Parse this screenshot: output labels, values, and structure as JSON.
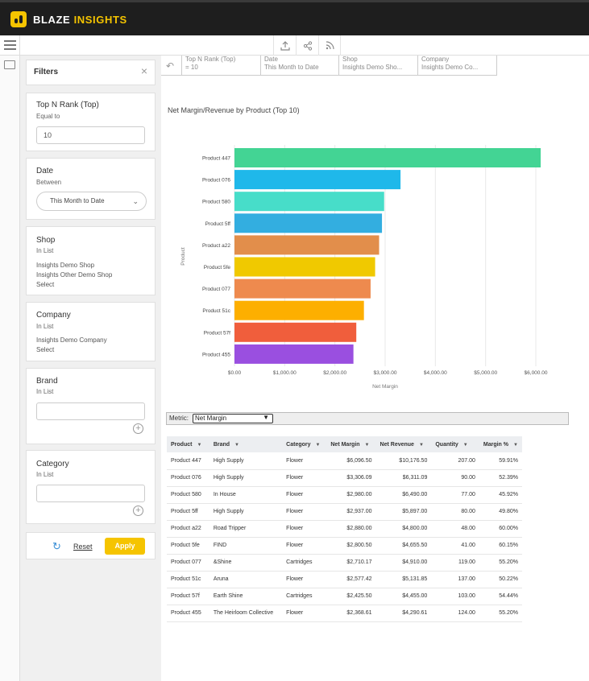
{
  "app": {
    "brand_part1": "BLAZE",
    "brand_part2": "INSIGHTS"
  },
  "toolbar": {
    "icons": [
      "export-icon",
      "share-icon",
      "rss-icon"
    ]
  },
  "filters": {
    "title": "Filters",
    "top_n": {
      "title": "Top N Rank (Top)",
      "operator": "Equal to",
      "value": "10"
    },
    "date": {
      "title": "Date",
      "operator": "Between",
      "selected": "This Month to Date"
    },
    "shop": {
      "title": "Shop",
      "operator": "In List",
      "items": [
        "Insights Demo Shop",
        "Insights Other Demo Shop"
      ],
      "select_label": "Select"
    },
    "company": {
      "title": "Company",
      "operator": "In List",
      "items": [
        "Insights Demo Company"
      ],
      "select_label": "Select"
    },
    "brand": {
      "title": "Brand",
      "operator": "In List",
      "search_value": ""
    },
    "category": {
      "title": "Category",
      "operator": "In List",
      "search_value": ""
    },
    "reset_label": "Reset",
    "apply_label": "Apply"
  },
  "chips": [
    {
      "label": "Top N Rank (Top)",
      "value": "= 10"
    },
    {
      "label": "Date",
      "value": "This Month to Date"
    },
    {
      "label": "Shop",
      "value": "Insights Demo Sho..."
    },
    {
      "label": "Company",
      "value": "Insights Demo Co..."
    }
  ],
  "chart_data": {
    "type": "bar",
    "orientation": "horizontal",
    "title": "Net Margin/Revenue by Product (Top 10)",
    "xlabel": "Net Margin",
    "ylabel": "Product",
    "categories": [
      "Product 447",
      "Product 076",
      "Product 580",
      "Product 5ff",
      "Product a22",
      "Product 5fe",
      "Product 077",
      "Product 51c",
      "Product 57f",
      "Product 455"
    ],
    "values": [
      6096.5,
      3306.09,
      2980.0,
      2937.0,
      2880.0,
      2800.5,
      2710.17,
      2577.42,
      2425.5,
      2368.61
    ],
    "colors": [
      "#43d494",
      "#1fb8ea",
      "#47ddc9",
      "#33aee0",
      "#e28e4b",
      "#f0c900",
      "#ee8a4e",
      "#fdaf00",
      "#f05e3c",
      "#9a4fe0"
    ],
    "xlim": [
      0,
      6000
    ],
    "xticks": [
      "$0.00",
      "$1,000.00",
      "$2,000.00",
      "$3,000.00",
      "$4,000.00",
      "$5,000.00",
      "$6,000.00"
    ],
    "grid": true
  },
  "metric": {
    "label": "Metric:",
    "selected": "Net Margin"
  },
  "table": {
    "columns": [
      "Product",
      "Brand",
      "Category",
      "Net Margin",
      "Net Revenue",
      "Quantity",
      "Margin %"
    ],
    "rows": [
      [
        "Product 447",
        "High Supply",
        "Flower",
        "$6,096.50",
        "$10,176.50",
        "207.00",
        "59.91%"
      ],
      [
        "Product 076",
        "High Supply",
        "Flower",
        "$3,306.09",
        "$6,311.09",
        "90.00",
        "52.39%"
      ],
      [
        "Product 580",
        "In House",
        "Flower",
        "$2,980.00",
        "$6,490.00",
        "77.00",
        "45.92%"
      ],
      [
        "Product 5ff",
        "High Supply",
        "Flower",
        "$2,937.00",
        "$5,897.00",
        "80.00",
        "49.80%"
      ],
      [
        "Product a22",
        "Road Tripper",
        "Flower",
        "$2,880.00",
        "$4,800.00",
        "48.00",
        "60.00%"
      ],
      [
        "Product 5fe",
        "FIND",
        "Flower",
        "$2,800.50",
        "$4,655.50",
        "41.00",
        "60.15%"
      ],
      [
        "Product 077",
        "&Shine",
        "Cartridges",
        "$2,710.17",
        "$4,910.00",
        "119.00",
        "55.20%"
      ],
      [
        "Product 51c",
        "Aruna",
        "Flower",
        "$2,577.42",
        "$5,131.85",
        "137.00",
        "50.22%"
      ],
      [
        "Product 57f",
        "Earth Shine",
        "Cartridges",
        "$2,425.50",
        "$4,455.00",
        "103.00",
        "54.44%"
      ],
      [
        "Product 455",
        "The Heirloom Collective",
        "Flower",
        "$2,368.61",
        "$4,290.61",
        "124.00",
        "55.20%"
      ]
    ]
  }
}
